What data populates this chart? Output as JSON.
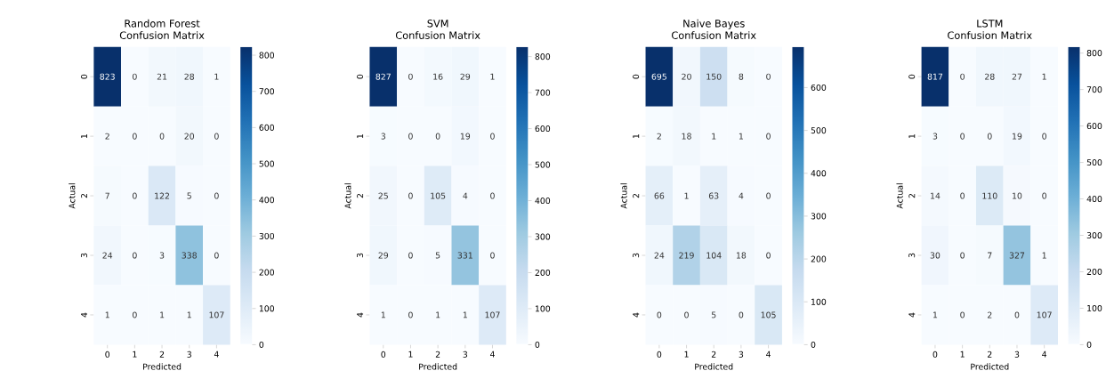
{
  "chart_data": [
    {
      "type": "heatmap",
      "title": "Random Forest",
      "subtitle": "Confusion Matrix",
      "xlabel": "Predicted",
      "ylabel": "Actual",
      "categories": [
        "0",
        "1",
        "2",
        "3",
        "4"
      ],
      "y_categories": [
        "0",
        "1",
        "2",
        "3",
        "4"
      ],
      "cells": [
        [
          823,
          0,
          21,
          28,
          1
        ],
        [
          2,
          0,
          0,
          20,
          0
        ],
        [
          7,
          0,
          122,
          5,
          0
        ],
        [
          24,
          0,
          3,
          338,
          0
        ],
        [
          1,
          0,
          1,
          1,
          107
        ]
      ],
      "clim": [
        0,
        823
      ],
      "cticks": [
        0,
        100,
        200,
        300,
        400,
        500,
        600,
        700,
        800
      ],
      "data_labels": true
    },
    {
      "type": "heatmap",
      "title": "SVM",
      "subtitle": "Confusion Matrix",
      "xlabel": "Predicted",
      "ylabel": "Actual",
      "categories": [
        "0",
        "1",
        "2",
        "3",
        "4"
      ],
      "y_categories": [
        "0",
        "1",
        "2",
        "3",
        "4"
      ],
      "cells": [
        [
          827,
          0,
          16,
          29,
          1
        ],
        [
          3,
          0,
          0,
          19,
          0
        ],
        [
          25,
          0,
          105,
          4,
          0
        ],
        [
          29,
          0,
          5,
          331,
          0
        ],
        [
          1,
          0,
          1,
          1,
          107
        ]
      ],
      "clim": [
        0,
        827
      ],
      "cticks": [
        0,
        100,
        200,
        300,
        400,
        500,
        600,
        700,
        800
      ],
      "data_labels": true
    },
    {
      "type": "heatmap",
      "title": "Naive Bayes",
      "subtitle": "Confusion Matrix",
      "xlabel": "Predicted",
      "ylabel": "Actual",
      "categories": [
        "0",
        "1",
        "2",
        "3",
        "4"
      ],
      "y_categories": [
        "0",
        "1",
        "2",
        "3",
        "4"
      ],
      "cells": [
        [
          695,
          20,
          150,
          8,
          0
        ],
        [
          2,
          18,
          1,
          1,
          0
        ],
        [
          66,
          1,
          63,
          4,
          0
        ],
        [
          24,
          219,
          104,
          18,
          0
        ],
        [
          0,
          0,
          5,
          0,
          105
        ]
      ],
      "clim": [
        0,
        695
      ],
      "cticks": [
        0,
        100,
        200,
        300,
        400,
        500,
        600
      ],
      "data_labels": true
    },
    {
      "type": "heatmap",
      "title": "LSTM",
      "subtitle": "Confusion Matrix",
      "xlabel": "Predicted",
      "ylabel": "Actual",
      "categories": [
        "0",
        "1",
        "2",
        "3",
        "4"
      ],
      "y_categories": [
        "0",
        "1",
        "2",
        "3",
        "4"
      ],
      "cells": [
        [
          817,
          0,
          28,
          27,
          1
        ],
        [
          3,
          0,
          0,
          19,
          0
        ],
        [
          14,
          0,
          110,
          10,
          0
        ],
        [
          30,
          0,
          7,
          327,
          1
        ],
        [
          1,
          0,
          2,
          0,
          107
        ]
      ],
      "clim": [
        0,
        817
      ],
      "cticks": [
        0,
        100,
        200,
        300,
        400,
        500,
        600,
        700,
        800
      ],
      "data_labels": true
    }
  ]
}
